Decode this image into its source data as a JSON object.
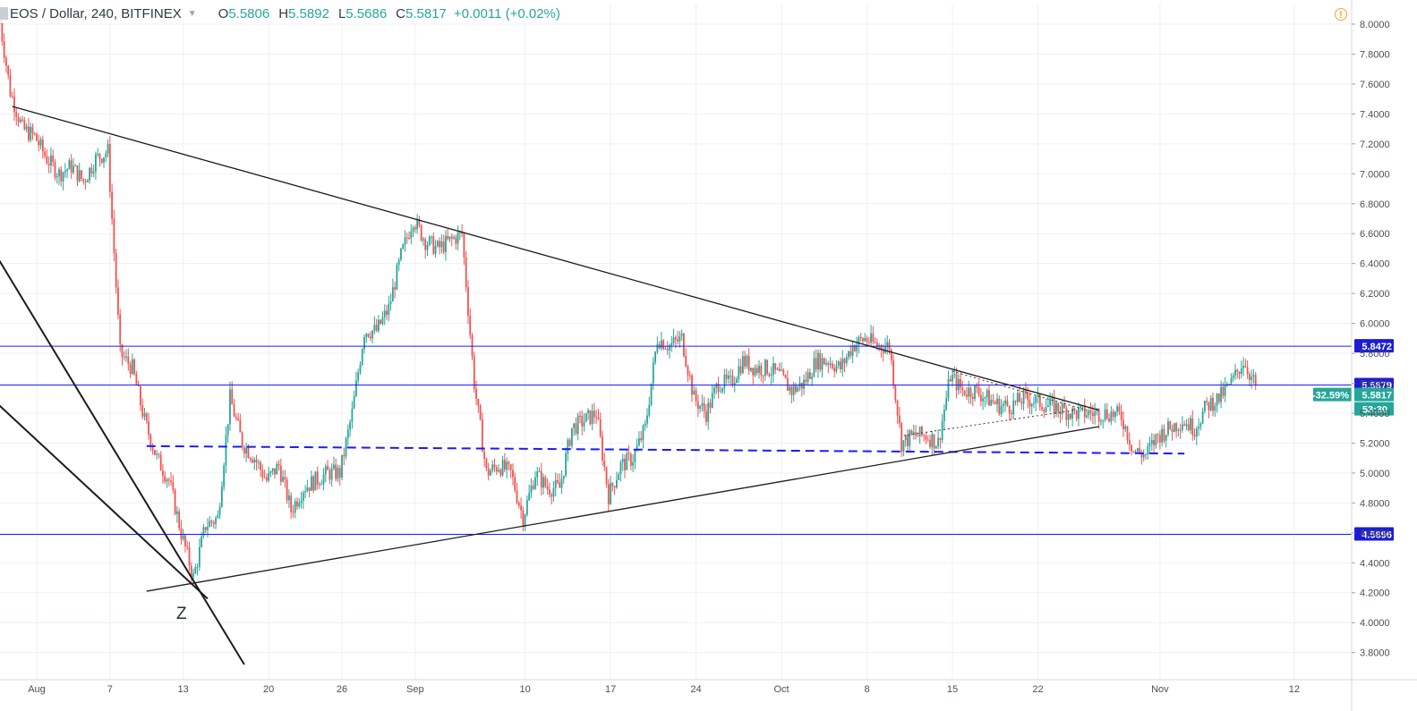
{
  "header": {
    "symbol": "EOS / Dollar, 240, BITFINEX",
    "open_label": "O",
    "open": "5.5806",
    "high_label": "H",
    "high": "5.5892",
    "low_label": "L",
    "low": "5.5686",
    "close_label": "C",
    "close": "5.5817",
    "change": "+0.0011 (+0.02%)"
  },
  "alert_icon": "alert-circle-icon",
  "chart_data": {
    "type": "candlestick",
    "ylim": [
      3.7,
      8.1
    ],
    "y_ticks": [
      "8.0000",
      "7.8000",
      "7.6000",
      "7.4000",
      "7.2000",
      "7.0000",
      "6.8000",
      "6.6000",
      "6.4000",
      "6.2000",
      "6.0000",
      "5.8000",
      "5.6000",
      "5.4000",
      "5.2000",
      "5.0000",
      "4.8000",
      "4.6000",
      "4.4000",
      "4.2000",
      "4.0000",
      "3.8000"
    ],
    "x_ticks": [
      "Aug",
      "7",
      "13",
      "20",
      "26",
      "Sep",
      "10",
      "17",
      "24",
      "Oct",
      "8",
      "15",
      "22",
      "Nov",
      "12"
    ],
    "close_path": [
      {
        "t": "2018-07-29",
        "v": 8.1
      },
      {
        "t": "2018-07-30",
        "v": 7.55
      },
      {
        "t": "2018-07-31",
        "v": 7.3
      },
      {
        "t": "2018-08-01",
        "v": 7.25
      },
      {
        "t": "2018-08-02",
        "v": 7.1
      },
      {
        "t": "2018-08-03",
        "v": 7.0
      },
      {
        "t": "2018-08-04",
        "v": 7.05
      },
      {
        "t": "2018-08-05",
        "v": 6.95
      },
      {
        "t": "2018-08-06",
        "v": 7.1
      },
      {
        "t": "2018-08-07",
        "v": 7.15
      },
      {
        "t": "2018-08-08",
        "v": 5.8
      },
      {
        "t": "2018-08-09",
        "v": 5.7
      },
      {
        "t": "2018-08-10",
        "v": 5.35
      },
      {
        "t": "2018-08-11",
        "v": 5.1
      },
      {
        "t": "2018-08-12",
        "v": 4.95
      },
      {
        "t": "2018-08-13",
        "v": 4.6
      },
      {
        "t": "2018-08-14",
        "v": 4.3
      },
      {
        "t": "2018-08-15",
        "v": 4.65
      },
      {
        "t": "2018-08-16",
        "v": 4.7
      },
      {
        "t": "2018-08-17",
        "v": 5.5
      },
      {
        "t": "2018-08-18",
        "v": 5.2
      },
      {
        "t": "2018-08-19",
        "v": 5.1
      },
      {
        "t": "2018-08-20",
        "v": 4.95
      },
      {
        "t": "2018-08-21",
        "v": 5.05
      },
      {
        "t": "2018-08-22",
        "v": 4.75
      },
      {
        "t": "2018-08-23",
        "v": 4.9
      },
      {
        "t": "2018-08-24",
        "v": 4.95
      },
      {
        "t": "2018-08-25",
        "v": 5.0
      },
      {
        "t": "2018-08-26",
        "v": 5.0
      },
      {
        "t": "2018-08-27",
        "v": 5.4
      },
      {
        "t": "2018-08-28",
        "v": 5.95
      },
      {
        "t": "2018-08-29",
        "v": 5.95
      },
      {
        "t": "2018-08-30",
        "v": 6.1
      },
      {
        "t": "2018-08-31",
        "v": 6.45
      },
      {
        "t": "2018-09-01",
        "v": 6.7
      },
      {
        "t": "2018-09-02",
        "v": 6.55
      },
      {
        "t": "2018-09-03",
        "v": 6.5
      },
      {
        "t": "2018-09-04",
        "v": 6.55
      },
      {
        "t": "2018-09-05",
        "v": 6.6
      },
      {
        "t": "2018-09-06",
        "v": 5.6
      },
      {
        "t": "2018-09-07",
        "v": 5.0
      },
      {
        "t": "2018-09-08",
        "v": 5.05
      },
      {
        "t": "2018-09-09",
        "v": 5.0
      },
      {
        "t": "2018-09-10",
        "v": 4.7
      },
      {
        "t": "2018-09-11",
        "v": 5.0
      },
      {
        "t": "2018-09-12",
        "v": 4.9
      },
      {
        "t": "2018-09-13",
        "v": 4.9
      },
      {
        "t": "2018-09-14",
        "v": 5.3
      },
      {
        "t": "2018-09-15",
        "v": 5.35
      },
      {
        "t": "2018-09-16",
        "v": 5.4
      },
      {
        "t": "2018-09-17",
        "v": 4.85
      },
      {
        "t": "2018-09-18",
        "v": 5.05
      },
      {
        "t": "2018-09-19",
        "v": 5.1
      },
      {
        "t": "2018-09-20",
        "v": 5.3
      },
      {
        "t": "2018-09-21",
        "v": 5.9
      },
      {
        "t": "2018-09-22",
        "v": 5.85
      },
      {
        "t": "2018-09-23",
        "v": 5.9
      },
      {
        "t": "2018-09-24",
        "v": 5.5
      },
      {
        "t": "2018-09-25",
        "v": 5.4
      },
      {
        "t": "2018-09-26",
        "v": 5.6
      },
      {
        "t": "2018-09-27",
        "v": 5.6
      },
      {
        "t": "2018-09-28",
        "v": 5.75
      },
      {
        "t": "2018-09-29",
        "v": 5.7
      },
      {
        "t": "2018-09-30",
        "v": 5.7
      },
      {
        "t": "2018-10-01",
        "v": 5.65
      },
      {
        "t": "2018-10-02",
        "v": 5.55
      },
      {
        "t": "2018-10-03",
        "v": 5.6
      },
      {
        "t": "2018-10-04",
        "v": 5.75
      },
      {
        "t": "2018-10-05",
        "v": 5.75
      },
      {
        "t": "2018-10-06",
        "v": 5.7
      },
      {
        "t": "2018-10-07",
        "v": 5.85
      },
      {
        "t": "2018-10-08",
        "v": 5.9
      },
      {
        "t": "2018-10-09",
        "v": 5.85
      },
      {
        "t": "2018-10-10",
        "v": 5.85
      },
      {
        "t": "2018-10-11",
        "v": 5.2
      },
      {
        "t": "2018-10-12",
        "v": 5.25
      },
      {
        "t": "2018-10-13",
        "v": 5.25
      },
      {
        "t": "2018-10-14",
        "v": 5.2
      },
      {
        "t": "2018-10-15",
        "v": 5.65
      },
      {
        "t": "2018-10-16",
        "v": 5.55
      },
      {
        "t": "2018-10-17",
        "v": 5.55
      },
      {
        "t": "2018-10-18",
        "v": 5.5
      },
      {
        "t": "2018-10-19",
        "v": 5.45
      },
      {
        "t": "2018-10-20",
        "v": 5.45
      },
      {
        "t": "2018-10-21",
        "v": 5.5
      },
      {
        "t": "2018-10-22",
        "v": 5.48
      },
      {
        "t": "2018-10-23",
        "v": 5.45
      },
      {
        "t": "2018-10-24",
        "v": 5.43
      },
      {
        "t": "2018-10-25",
        "v": 5.4
      },
      {
        "t": "2018-10-26",
        "v": 5.4
      },
      {
        "t": "2018-10-27",
        "v": 5.4
      },
      {
        "t": "2018-10-28",
        "v": 5.4
      },
      {
        "t": "2018-10-29",
        "v": 5.38
      },
      {
        "t": "2018-10-30",
        "v": 5.15
      },
      {
        "t": "2018-10-31",
        "v": 5.12
      },
      {
        "t": "2018-11-01",
        "v": 5.25
      },
      {
        "t": "2018-11-02",
        "v": 5.3
      },
      {
        "t": "2018-11-03",
        "v": 5.35
      },
      {
        "t": "2018-11-04",
        "v": 5.3
      },
      {
        "t": "2018-11-05",
        "v": 5.45
      },
      {
        "t": "2018-11-06",
        "v": 5.5
      },
      {
        "t": "2018-11-07",
        "v": 5.6
      },
      {
        "t": "2018-11-08",
        "v": 5.75
      },
      {
        "t": "2018-11-09",
        "v": 5.5817
      }
    ],
    "horizontal_levels": [
      {
        "price": 5.8472,
        "label": "5.8472",
        "color": "#1a1aff"
      },
      {
        "price": 5.5879,
        "label": "5.5879",
        "color": "#1a1aff"
      },
      {
        "price": 4.5896,
        "label": "4.5896",
        "color": "#1a1aff"
      }
    ],
    "dashed_support": {
      "from": {
        "t": "2018-08-10",
        "v": 5.18
      },
      "to": {
        "t": "2018-11-03",
        "v": 5.13
      },
      "color": "#1a1aff"
    },
    "trendlines": [
      {
        "from": {
          "t": "2018-07-30",
          "v": 7.45
        },
        "to": {
          "t": "2018-10-27",
          "v": 5.42
        }
      },
      {
        "from": {
          "t": "2018-08-10",
          "v": 4.21
        },
        "to": {
          "t": "2018-10-27",
          "v": 5.31
        }
      },
      {
        "from": {
          "t": "2018-07-25",
          "v": 6.95
        },
        "to": {
          "t": "2018-08-18",
          "v": 3.72
        }
      },
      {
        "from": {
          "t": "2018-07-25",
          "v": 5.75
        },
        "to": {
          "t": "2018-08-15",
          "v": 4.16
        }
      }
    ],
    "current": {
      "price": 5.5817,
      "label": "5.5817",
      "pct_label": "-32.59%",
      "countdown": "53:30"
    },
    "annotation": "Z",
    "colors": {
      "up": "#26a69a",
      "down": "#ef5350",
      "grid": "#eef0f3",
      "line": "#1c1c1c"
    }
  }
}
